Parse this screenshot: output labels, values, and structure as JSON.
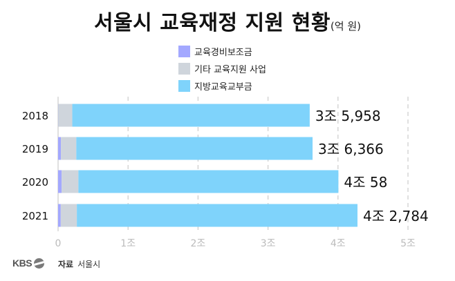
{
  "title": "서울시 교육재정 지원 현황",
  "unit": "(억 원)",
  "colors": {
    "series_a": "#a3a8ff",
    "series_b": "#cfd5dc",
    "series_c": "#7fd3fb",
    "grid": "#cccccc",
    "tick": "#bbbbbb"
  },
  "chart_data": {
    "type": "bar",
    "orientation": "horizontal",
    "stacked": true,
    "categories": [
      "2018",
      "2019",
      "2020",
      "2021"
    ],
    "series": [
      {
        "name": "교육경비보조금",
        "values": [
          30,
          400,
          500,
          380
        ]
      },
      {
        "name": "기타 교육지원 사업",
        "values": [
          2000,
          2200,
          2400,
          2300
        ]
      },
      {
        "name": "지방교육교부금",
        "values": [
          33928,
          33766,
          37158,
          40104
        ]
      }
    ],
    "total_labels": [
      "3조 5,958",
      "3조 6,366",
      "4조 58",
      "4조 2,784"
    ],
    "xticks": [
      0,
      10000,
      20000,
      30000,
      40000,
      50000
    ],
    "xtick_labels": [
      "0",
      "1조",
      "2조",
      "3조",
      "4조",
      "5조"
    ],
    "xlim": [
      0,
      50000
    ],
    "grid": true,
    "legend_position": "top"
  },
  "footer": {
    "logo": "KBS",
    "source_label": "자료",
    "source_value": "서울시"
  }
}
